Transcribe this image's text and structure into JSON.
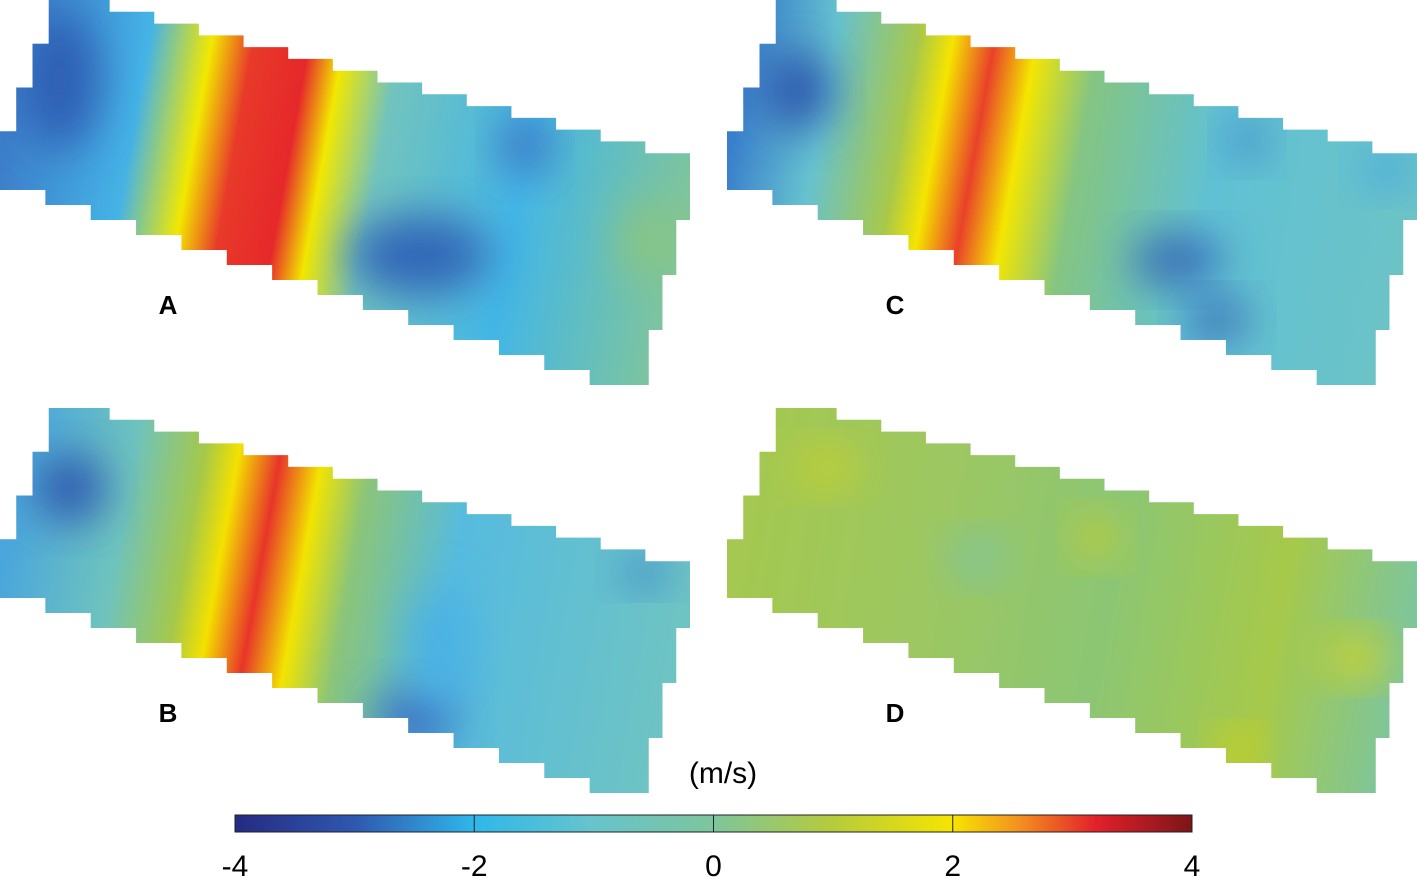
{
  "panels": [
    {
      "label": "A"
    },
    {
      "label": "B"
    },
    {
      "label": "C"
    },
    {
      "label": "D"
    }
  ],
  "colorbar": {
    "label": "(m/s)",
    "lim": [
      -4,
      4
    ],
    "ticks": [
      -4,
      -2,
      0,
      2,
      4
    ]
  }
}
